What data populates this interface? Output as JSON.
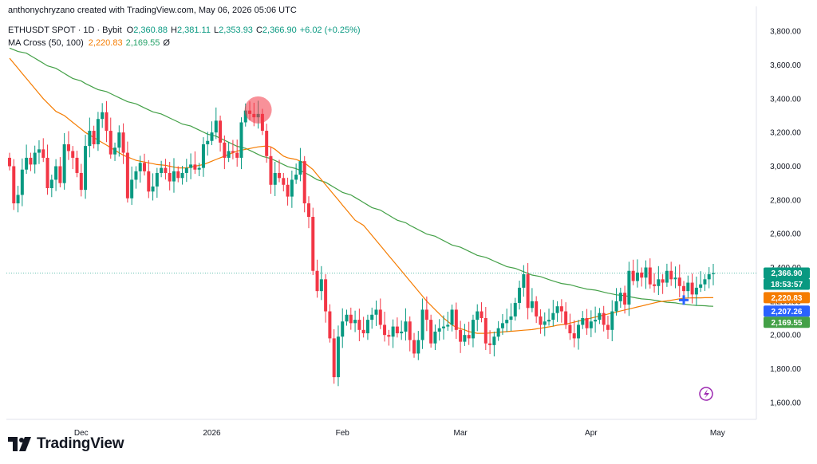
{
  "header": {
    "text": "anthonychryzano created with TradingView.com, May 06, 2026 05:06 UTC"
  },
  "legend": {
    "symbol": "ETHUSDT SPOT · 1D · Bybit",
    "open_label": "O",
    "open": "2,360.88",
    "high_label": "H",
    "high": "2,381.11",
    "low_label": "L",
    "low": "2,353.93",
    "close_label": "C",
    "close": "2,366.90",
    "change": "+6.02 (+0.25%)",
    "indicator": "MA Cross (50, 100)",
    "ma_fast": "2,220.83",
    "ma_slow": "2,169.55",
    "ma_extra": "Ø"
  },
  "brand": {
    "name": "TradingView"
  },
  "price_tags": {
    "last": "2,366.90",
    "countdown": "18:53:57",
    "ma_fast": "2,220.83",
    "cross": "2,207.26",
    "ma_slow": "2,169.55"
  },
  "colors": {
    "up": "#089981",
    "down": "#f23645",
    "ma_fast": "#f57c00",
    "ma_slow": "#43a047",
    "cross_marker": "#2962ff",
    "highlight": "#f23645"
  },
  "chart_data": {
    "type": "candlestick",
    "symbol": "ETHUSDT",
    "interval": "1D",
    "ylim": [
      1500,
      3900
    ],
    "y_ticks": [
      "1,600.00",
      "1,800.00",
      "2,000.00",
      "2,200.00",
      "2,400.00",
      "2,600.00",
      "2,800.00",
      "3,000.00",
      "3,200.00",
      "3,400.00",
      "3,600.00",
      "3,800.00"
    ],
    "y_tick_values": [
      1600,
      1800,
      2000,
      2200,
      2400,
      2600,
      2800,
      3000,
      3200,
      3400,
      3600,
      3800
    ],
    "x_ticks": [
      {
        "label": "Dec",
        "index": 17
      },
      {
        "label": "2026",
        "index": 48
      },
      {
        "label": "Feb",
        "index": 79
      },
      {
        "label": "Mar",
        "index": 107
      },
      {
        "label": "Apr",
        "index": 138
      },
      {
        "label": "May",
        "index": 168
      }
    ],
    "closes": [
      3000,
      2780,
      2830,
      2980,
      3050,
      3010,
      3080,
      3100,
      3050,
      2870,
      2920,
      3000,
      2900,
      3130,
      3090,
      3050,
      2960,
      2860,
      3120,
      3210,
      3130,
      3280,
      3320,
      3210,
      3070,
      3110,
      3200,
      3080,
      2810,
      2920,
      2970,
      3020,
      2970,
      2850,
      2880,
      2960,
      2990,
      2960,
      2910,
      2970,
      2930,
      2960,
      2990,
      3010,
      2980,
      2990,
      3130,
      3150,
      3200,
      3270,
      3140,
      3050,
      3090,
      3080,
      3050,
      3260,
      3330,
      3310,
      3290,
      3310,
      3210,
      3060,
      2890,
      2960,
      2930,
      2890,
      2820,
      2920,
      2950,
      3030,
      2780,
      2700,
      2380,
      2260,
      2330,
      2140,
      1980,
      1750,
      1990,
      2080,
      2120,
      2070,
      2090,
      2030,
      2010,
      2090,
      2120,
      2150,
      2060,
      2000,
      1990,
      2050,
      2010,
      2020,
      2080,
      1970,
      1890,
      1970,
      2150,
      2090,
      1950,
      2020,
      2040,
      2050,
      2060,
      2150,
      2030,
      1960,
      2000,
      1980,
      2090,
      2140,
      2100,
      1950,
      1940,
      1990,
      2040,
      2070,
      2090,
      2110,
      2190,
      2280,
      2360,
      2160,
      2200,
      2110,
      2060,
      2080,
      2090,
      2130,
      2170,
      2140,
      2060,
      2010,
      1980,
      2060,
      2100,
      2040,
      2080,
      2090,
      2130,
      2060,
      2030,
      2140,
      2200,
      2250,
      2180,
      2380,
      2320,
      2370,
      2340,
      2400,
      2300,
      2290,
      2330,
      2310,
      2380,
      2330,
      2340,
      2290,
      2260,
      2310,
      2240,
      2280,
      2300,
      2330,
      2360,
      2367
    ],
    "opens": [
      3050,
      3000,
      2780,
      2830,
      2980,
      3050,
      3010,
      3080,
      3100,
      3050,
      2870,
      2920,
      3000,
      2900,
      3130,
      3090,
      3050,
      2960,
      2860,
      3120,
      3210,
      3130,
      3280,
      3320,
      3210,
      3070,
      3110,
      3200,
      3080,
      2810,
      2920,
      2970,
      3020,
      2970,
      2850,
      2880,
      2960,
      2990,
      2960,
      2910,
      2970,
      2930,
      2960,
      2990,
      3010,
      2980,
      2990,
      3130,
      3150,
      3200,
      3270,
      3140,
      3050,
      3090,
      3080,
      3050,
      3260,
      3330,
      3310,
      3290,
      3310,
      3210,
      3060,
      2890,
      2960,
      2930,
      2890,
      2820,
      2920,
      2950,
      3030,
      2780,
      2700,
      2380,
      2260,
      2330,
      2140,
      1980,
      1750,
      1990,
      2080,
      2120,
      2070,
      2090,
      2030,
      2010,
      2090,
      2120,
      2150,
      2060,
      2000,
      1990,
      2050,
      2010,
      2020,
      2080,
      1970,
      1890,
      1970,
      2150,
      2090,
      1950,
      2020,
      2040,
      2050,
      2060,
      2150,
      2030,
      1960,
      2000,
      1980,
      2090,
      2140,
      2100,
      1950,
      1940,
      1990,
      2040,
      2070,
      2090,
      2110,
      2190,
      2280,
      2360,
      2160,
      2200,
      2110,
      2060,
      2080,
      2090,
      2130,
      2170,
      2140,
      2060,
      2010,
      1980,
      2060,
      2100,
      2040,
      2080,
      2090,
      2130,
      2060,
      2030,
      2140,
      2200,
      2250,
      2180,
      2380,
      2320,
      2370,
      2340,
      2400,
      2300,
      2290,
      2330,
      2310,
      2380,
      2330,
      2340,
      2290,
      2260,
      2310,
      2240,
      2280,
      2300,
      2330,
      2361
    ],
    "ma_fast_values": [
      3640,
      3610,
      3580,
      3550,
      3520,
      3490,
      3460,
      3430,
      3400,
      3375,
      3350,
      3325,
      3300,
      3280,
      3260,
      3240,
      3220,
      3200,
      3185,
      3170,
      3155,
      3140,
      3125,
      3110,
      3095,
      3080,
      3065,
      3055,
      3045,
      3035,
      3030,
      3025,
      3020,
      3015,
      3010,
      3005,
      3000,
      2995,
      2990,
      2990,
      2990,
      2995,
      3000,
      3005,
      3010,
      3020,
      3030,
      3040,
      3050,
      3060,
      3070,
      3080,
      3090,
      3095,
      3100,
      3105,
      3110,
      3115,
      3120,
      3115,
      3100,
      3080,
      3060,
      3050,
      3045,
      3040,
      3030,
      3020,
      3000,
      2980,
      2950,
      2920,
      2890,
      2860,
      2830,
      2800,
      2770,
      2740,
      2710,
      2680,
      2650,
      2620,
      2590,
      2560,
      2530,
      2500,
      2470,
      2440,
      2410,
      2380,
      2350,
      2320,
      2290,
      2260,
      2230,
      2200,
      2175,
      2150,
      2125,
      2100,
      2080,
      2060,
      2045,
      2030,
      2020,
      2015,
      2010,
      2010,
      2010,
      2012,
      2014,
      2016,
      2018,
      2020,
      2022,
      2024,
      2026,
      2028,
      2030,
      2032,
      2036,
      2040,
      2044,
      2048,
      2052,
      2058,
      2064,
      2070,
      2076,
      2082,
      2088,
      2094,
      2100,
      2106,
      2112,
      2118,
      2124,
      2130,
      2136,
      2142,
      2148,
      2154,
      2160,
      2166,
      2172,
      2178,
      2184,
      2190,
      2196,
      2202,
      2206,
      2210,
      2214,
      2218,
      2219,
      2220,
      2220,
      2220,
      2221,
      2221,
      2221
    ],
    "ma_slow_values": [
      3700,
      3690,
      3680,
      3670,
      3655,
      3640,
      3625,
      3610,
      3595,
      3580,
      3565,
      3550,
      3535,
      3520,
      3505,
      3490,
      3478,
      3466,
      3454,
      3442,
      3430,
      3418,
      3406,
      3394,
      3382,
      3370,
      3358,
      3346,
      3334,
      3322,
      3310,
      3298,
      3286,
      3274,
      3262,
      3250,
      3238,
      3226,
      3214,
      3202,
      3190,
      3178,
      3166,
      3154,
      3142,
      3130,
      3118,
      3106,
      3094,
      3082,
      3070,
      3058,
      3046,
      3034,
      3022,
      3010,
      2998,
      2986,
      2974,
      2962,
      2950,
      2935,
      2920,
      2905,
      2890,
      2875,
      2860,
      2845,
      2830,
      2815,
      2800,
      2785,
      2770,
      2755,
      2740,
      2725,
      2710,
      2695,
      2680,
      2665,
      2650,
      2637,
      2624,
      2611,
      2598,
      2585,
      2572,
      2559,
      2546,
      2533,
      2520,
      2508,
      2496,
      2484,
      2472,
      2460,
      2449,
      2438,
      2427,
      2416,
      2405,
      2395,
      2385,
      2375,
      2365,
      2355,
      2346,
      2337,
      2328,
      2320,
      2312,
      2305,
      2298,
      2291,
      2284,
      2278,
      2272,
      2266,
      2260,
      2254,
      2248,
      2243,
      2238,
      2233,
      2228,
      2223,
      2218,
      2214,
      2210,
      2206,
      2202,
      2198,
      2194,
      2190,
      2186,
      2183,
      2180,
      2177,
      2175,
      2173,
      2171,
      2170
    ],
    "highlight_index": 59,
    "cross_index": 160
  }
}
